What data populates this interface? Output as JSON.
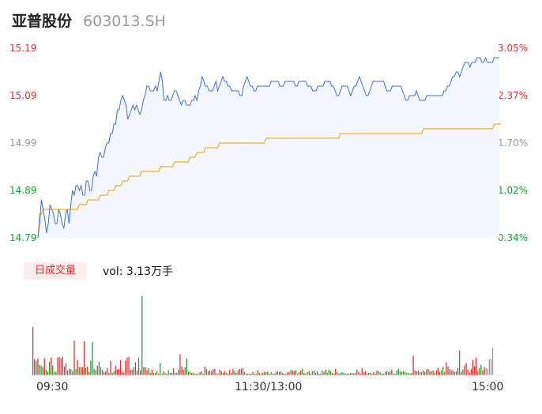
{
  "header": {
    "name": "亚普股份",
    "code": "603013.SH"
  },
  "colors": {
    "up": "#e03030",
    "down": "#1aa033",
    "price_line": "#3b6fd8",
    "avg_line": "#f0b030",
    "area_fill": "#f4f7fd",
    "neutral": "#999999"
  },
  "chart_data": [
    {
      "type": "line",
      "title": "",
      "y_ticks_left": [
        "15.19",
        "15.09",
        "14.99",
        "14.89",
        "14.79"
      ],
      "y_ticks_right": [
        "3.05%",
        "2.37%",
        "1.70%",
        "1.02%",
        "0.34%"
      ],
      "ylim": [
        14.79,
        15.19
      ],
      "x_ticks": [
        "09:30",
        "11:30/13:00",
        "15:00"
      ],
      "series": [
        {
          "name": "",
          "values": [
            14.79,
            14.82,
            14.87,
            14.85,
            14.83,
            14.8,
            14.82,
            14.86,
            14.85,
            14.84,
            14.82,
            14.82,
            14.85,
            14.84,
            14.82,
            14.81,
            14.84,
            14.85,
            14.82,
            14.86,
            14.89,
            14.88,
            14.9,
            14.9,
            14.89,
            14.9,
            14.88,
            14.88,
            14.91,
            14.91,
            14.89,
            14.89,
            14.92,
            14.93,
            14.92,
            14.96,
            14.97,
            14.96,
            14.96,
            14.98,
            14.99,
            14.99,
            15.01,
            15.01,
            15.03,
            15.03,
            15.06,
            15.06,
            15.08,
            15.09,
            15.08,
            15.07,
            15.04,
            15.05,
            15.06,
            15.07,
            15.06,
            15.07,
            15.06,
            15.05,
            15.06,
            15.08,
            15.09,
            15.11,
            15.11,
            15.1,
            15.1,
            15.1,
            15.11,
            15.1,
            15.12,
            15.14,
            15.12,
            15.08,
            15.08,
            15.09,
            15.08,
            15.08,
            15.09,
            15.1,
            15.1,
            15.09,
            15.08,
            15.07,
            15.08,
            15.08,
            15.07,
            15.07,
            15.07,
            15.08,
            15.08,
            15.09,
            15.08,
            15.1,
            15.11,
            15.13,
            15.12,
            15.11,
            15.11,
            15.1,
            15.1,
            15.1,
            15.11,
            15.12,
            15.1,
            15.11,
            15.12,
            15.13,
            15.12,
            15.12,
            15.11,
            15.11,
            15.1,
            15.1,
            15.1,
            15.1,
            15.1,
            15.09,
            15.09,
            15.11,
            15.12,
            15.13,
            15.12,
            15.11,
            15.11,
            15.1,
            15.1,
            15.11,
            15.11,
            15.11,
            15.11,
            15.11,
            15.11,
            15.11,
            15.11,
            15.12,
            15.12,
            15.12,
            15.12,
            15.12,
            15.11,
            15.11,
            15.11,
            15.12,
            15.12,
            15.12,
            15.12,
            15.12,
            15.12,
            15.11,
            15.11,
            15.12,
            15.12,
            15.12,
            15.12,
            15.12,
            15.11,
            15.11,
            15.11,
            15.1,
            15.1,
            15.1,
            15.11,
            15.11,
            15.11,
            15.11,
            15.12,
            15.12,
            15.12,
            15.12,
            15.11,
            15.11,
            15.1,
            15.09,
            15.09,
            15.1,
            15.11,
            15.11,
            15.11,
            15.11,
            15.1,
            15.09,
            15.1,
            15.11,
            15.11,
            15.12,
            15.13,
            15.12,
            15.11,
            15.1,
            15.09,
            15.09,
            15.1,
            15.11,
            15.12,
            15.12,
            15.12,
            15.12,
            15.12,
            15.12,
            15.12,
            15.11,
            15.1,
            15.1,
            15.1,
            15.11,
            15.11,
            15.11,
            15.11,
            15.11,
            15.11,
            15.1,
            15.09,
            15.08,
            15.08,
            15.09,
            15.09,
            15.09,
            15.09,
            15.1,
            15.09,
            15.08,
            15.08,
            15.08,
            15.08,
            15.09,
            15.09,
            15.09,
            15.09,
            15.09,
            15.09,
            15.09,
            15.09,
            15.09,
            15.09,
            15.1,
            15.1,
            15.11,
            15.11,
            15.12,
            15.13,
            15.13,
            15.14,
            15.14,
            15.13,
            15.14,
            15.15,
            15.16,
            15.16,
            15.16,
            15.15,
            15.16,
            15.16,
            15.16,
            15.17,
            15.17,
            15.17,
            15.16,
            15.16,
            15.17,
            15.16,
            15.16,
            15.16,
            15.16,
            15.17,
            15.17,
            15.17,
            15.17
          ]
        },
        {
          "name": "",
          "values": [
            14.79,
            14.84,
            14.84,
            14.85,
            14.85,
            14.85,
            14.85,
            14.85,
            14.85,
            14.85,
            14.85,
            14.85,
            14.85,
            14.85,
            14.85,
            14.85,
            14.85,
            14.85,
            14.85,
            14.85,
            14.85,
            14.85,
            14.85,
            14.85,
            14.86,
            14.86,
            14.86,
            14.86,
            14.86,
            14.87,
            14.87,
            14.87,
            14.87,
            14.87,
            14.87,
            14.87,
            14.88,
            14.88,
            14.88,
            14.88,
            14.88,
            14.89,
            14.89,
            14.89,
            14.89,
            14.9,
            14.9,
            14.9,
            14.9,
            14.91,
            14.91,
            14.91,
            14.91,
            14.92,
            14.92,
            14.92,
            14.92,
            14.92,
            14.92,
            14.92,
            14.93,
            14.93,
            14.93,
            14.93,
            14.93,
            14.93,
            14.93,
            14.93,
            14.93,
            14.93,
            14.93,
            14.94,
            14.94,
            14.94,
            14.94,
            14.94,
            14.94,
            14.94,
            14.94,
            14.95,
            14.95,
            14.95,
            14.95,
            14.95,
            14.95,
            14.95,
            14.95,
            14.95,
            14.96,
            14.96,
            14.96,
            14.96,
            14.97,
            14.97,
            14.97,
            14.97,
            14.97,
            14.98,
            14.98,
            14.98,
            14.98,
            14.98,
            14.98,
            14.98,
            14.98,
            14.99,
            14.99,
            14.99,
            14.99,
            14.99,
            14.99,
            14.99,
            14.99,
            14.99,
            14.99,
            14.99,
            14.99,
            14.99,
            14.99,
            14.99,
            14.99,
            14.99,
            14.99,
            14.99,
            14.99,
            14.99,
            14.99,
            14.99,
            14.99,
            14.99,
            14.99,
            14.99,
            15.0,
            15.0,
            15.0,
            15.0,
            15.0,
            15.0,
            15.0,
            15.0,
            15.0,
            15.0,
            15.0,
            15.0,
            15.0,
            15.0,
            15.0,
            15.0,
            15.0,
            15.0,
            15.0,
            15.0,
            15.0,
            15.0,
            15.0,
            15.0,
            15.0,
            15.0,
            15.0,
            15.0,
            15.0,
            15.0,
            15.0,
            15.0,
            15.0,
            15.0,
            15.0,
            15.0,
            15.0,
            15.0,
            15.0,
            15.0,
            15.0,
            15.0,
            15.0,
            15.01,
            15.01,
            15.01,
            15.01,
            15.01,
            15.01,
            15.01,
            15.01,
            15.01,
            15.01,
            15.01,
            15.01,
            15.01,
            15.01,
            15.01,
            15.01,
            15.01,
            15.01,
            15.01,
            15.01,
            15.01,
            15.01,
            15.01,
            15.01,
            15.01,
            15.01,
            15.01,
            15.01,
            15.01,
            15.01,
            15.01,
            15.01,
            15.01,
            15.01,
            15.01,
            15.01,
            15.01,
            15.01,
            15.01,
            15.01,
            15.01,
            15.01,
            15.01,
            15.01,
            15.01,
            15.01,
            15.01,
            15.01,
            15.02,
            15.02,
            15.02,
            15.02,
            15.02,
            15.02,
            15.02,
            15.02,
            15.02,
            15.02,
            15.02,
            15.02,
            15.02,
            15.02,
            15.02,
            15.02,
            15.02,
            15.02,
            15.02,
            15.02,
            15.02,
            15.02,
            15.02,
            15.02,
            15.02,
            15.02,
            15.02,
            15.02,
            15.02,
            15.02,
            15.02,
            15.02,
            15.02,
            15.02,
            15.02,
            15.02,
            15.02,
            15.02,
            15.02,
            15.02,
            15.02,
            15.03,
            15.03,
            15.03,
            15.03,
            15.03
          ]
        }
      ]
    },
    {
      "type": "bar",
      "title": "vol: 3.13万手",
      "label": "日成交量",
      "x_ticks": [
        "09:30",
        "11:30/13:00",
        "15:00"
      ],
      "values": [
        60,
        20,
        18,
        21,
        13,
        12,
        10,
        21,
        7,
        4,
        17,
        22,
        12,
        4,
        4,
        22,
        23,
        21,
        23,
        11,
        15,
        6,
        8,
        8,
        5,
        43,
        8,
        19,
        10,
        10,
        10,
        42,
        9,
        11,
        4,
        18,
        41,
        8,
        6,
        12,
        17,
        10,
        7,
        4,
        5,
        9,
        3,
        18,
        3,
        5,
        12,
        7,
        8,
        19,
        4,
        3,
        18,
        22,
        23,
        7,
        7,
        10,
        16,
        6,
        22,
        6,
        98,
        10,
        10,
        6,
        9,
        3,
        7,
        3,
        3,
        5,
        2,
        15,
        2,
        5,
        3,
        2,
        6,
        3,
        3,
        9,
        3,
        3,
        7,
        26,
        11,
        7,
        10,
        21,
        4,
        5,
        3,
        3,
        2,
        2,
        2,
        4,
        5,
        2,
        11,
        8,
        5,
        6,
        5,
        8,
        8,
        2,
        2,
        7,
        5,
        3,
        5,
        3,
        2,
        7,
        3,
        8,
        5,
        3,
        6,
        8,
        8,
        9,
        4,
        2,
        2,
        2,
        2,
        4,
        2,
        2,
        6,
        3,
        2,
        3,
        4,
        4,
        5,
        2,
        4,
        2,
        2,
        4,
        5,
        4,
        5,
        3,
        2,
        2,
        4,
        4,
        7,
        6,
        5,
        6,
        2,
        4,
        6,
        8,
        3,
        2,
        4,
        5,
        2,
        5,
        6,
        3,
        5,
        2,
        2,
        6,
        4,
        7,
        3,
        7,
        5,
        3,
        2,
        8,
        4,
        2,
        3,
        4,
        3,
        2,
        2,
        2,
        3,
        3,
        2,
        3,
        7,
        4,
        2,
        9,
        4,
        5,
        2,
        3,
        3,
        2,
        4,
        2,
        6,
        5,
        4,
        2,
        2,
        4,
        5,
        4,
        5,
        7,
        2,
        2,
        6,
        8,
        5,
        4,
        5,
        4,
        3,
        3,
        2,
        3,
        24,
        6,
        5,
        6,
        4,
        4,
        6,
        4,
        7,
        8,
        5,
        5,
        6,
        3,
        6,
        9,
        4,
        6,
        10,
        4,
        16,
        11,
        8,
        6,
        6,
        4,
        5,
        9,
        31,
        4,
        7,
        12,
        15,
        7,
        3,
        8,
        19,
        11,
        22,
        5,
        9,
        13,
        6,
        10,
        9,
        8,
        20,
        20,
        34
      ],
      "colors": [
        "up",
        "up",
        "down",
        "up",
        "down",
        "down",
        "up",
        "up",
        "down",
        "down",
        "down",
        "up",
        "down",
        "down",
        "down",
        "up",
        "up",
        "up",
        "up",
        "up",
        "up",
        "up",
        "down",
        "down",
        "down",
        "up",
        "down",
        "up",
        "down",
        "up",
        "up",
        "up",
        "down",
        "up",
        "up",
        "down",
        "down",
        "down",
        "down",
        "up",
        "down",
        "down",
        "up",
        "up",
        "up",
        "up",
        "down",
        "up",
        "down",
        "down",
        "up",
        "up",
        "up",
        "up",
        "up",
        "up",
        "up",
        "up",
        "up",
        "up",
        "up",
        "down",
        "up",
        "up",
        "down",
        "up",
        "down",
        "up",
        "up",
        "up",
        "down",
        "up",
        "up",
        "down",
        "up",
        "down",
        "up",
        "down",
        "up",
        "up",
        "down",
        "up",
        "down",
        "down",
        "up",
        "up",
        "down",
        "down",
        "up",
        "up",
        "up",
        "up",
        "down",
        "down",
        "up",
        "down",
        "up",
        "down",
        "down",
        "up",
        "up",
        "down",
        "up",
        "down",
        "up",
        "down",
        "down",
        "up",
        "down",
        "up",
        "up",
        "up",
        "up",
        "up",
        "down",
        "up",
        "up",
        "down",
        "up",
        "up",
        "down",
        "up",
        "down",
        "down",
        "up",
        "up",
        "up",
        "up",
        "down",
        "down",
        "up",
        "down",
        "down",
        "up",
        "down",
        "down",
        "up",
        "down",
        "up",
        "up",
        "down",
        "up",
        "down",
        "down",
        "down",
        "up",
        "down",
        "up",
        "up",
        "up",
        "down",
        "up",
        "down",
        "up",
        "up",
        "up",
        "down",
        "up",
        "up",
        "down",
        "up",
        "down",
        "up",
        "down",
        "up",
        "down",
        "down",
        "up",
        "down",
        "down",
        "down",
        "up",
        "down",
        "up",
        "up",
        "down",
        "down",
        "up",
        "down",
        "down",
        "down",
        "up",
        "up",
        "up",
        "down",
        "up",
        "down",
        "down",
        "down",
        "down",
        "up",
        "down",
        "down",
        "down",
        "up",
        "up",
        "up",
        "up",
        "up",
        "up",
        "up",
        "up",
        "up",
        "down",
        "down",
        "up",
        "up",
        "up",
        "up",
        "down",
        "down",
        "up",
        "up",
        "down",
        "up",
        "up",
        "down",
        "up",
        "down",
        "up",
        "down",
        "down",
        "down",
        "up",
        "down",
        "down",
        "down",
        "up",
        "down",
        "down",
        "up",
        "up",
        "up",
        "down",
        "up",
        "up",
        "up",
        "up",
        "down",
        "up",
        "up",
        "down",
        "up",
        "down",
        "up",
        "up",
        "up",
        "down",
        "down",
        "up",
        "up",
        "up",
        "down",
        "up",
        "up",
        "down",
        "up",
        "up",
        "down",
        "down",
        "up",
        "up",
        "up",
        "up",
        "up",
        "up",
        "up",
        "up",
        "up",
        "up",
        "down",
        "down",
        "up",
        "up",
        "neutral"
      ]
    }
  ]
}
